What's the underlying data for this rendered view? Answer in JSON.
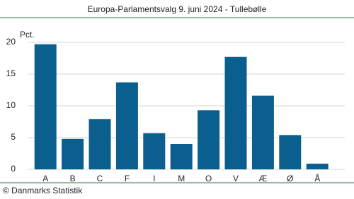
{
  "chart_data": {
    "type": "bar",
    "title": "Europa-Parlamentsvalg 9. juni 2024 - Tullebølle",
    "y_unit": "Pct.",
    "source": "© Danmarks Statistik",
    "categories": [
      "A",
      "B",
      "C",
      "F",
      "I",
      "M",
      "O",
      "V",
      "Æ",
      "Ø",
      "Å"
    ],
    "values": [
      19.7,
      4.8,
      7.9,
      13.7,
      5.7,
      4.0,
      9.3,
      17.7,
      11.6,
      5.4,
      0.9
    ],
    "color": "#0a5f8e",
    "ylim": [
      0,
      20
    ],
    "yticks": [
      0,
      5,
      10,
      15,
      20
    ],
    "grid": true
  }
}
